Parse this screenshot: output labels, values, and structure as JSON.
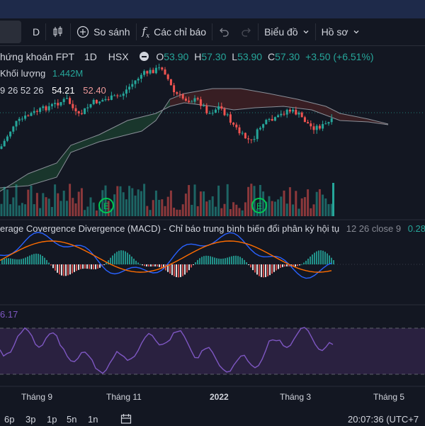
{
  "toolbar": {
    "interval_label": "D",
    "compare_label": "So sánh",
    "indicators_label": "Các chỉ báo",
    "chart_type_label": "Biểu đồ",
    "profile_label": "Hồ sơ"
  },
  "legend": {
    "symbol_name": "hứng khoán FPT",
    "interval": "1D",
    "exchange": "HSX",
    "open_label": "O",
    "open": "53.90",
    "high_label": "H",
    "high": "57.30",
    "low_label": "L",
    "low": "53.90",
    "close_label": "C",
    "close": "57.30",
    "change": "+3.50 (+6.51%)",
    "volume_label": "Khối lượng",
    "volume_value": "1.442M",
    "ichimoku_params": "9 26 52 26",
    "ichimoku_v1": "54.21",
    "ichimoku_v2": "52.40",
    "macd_title": "erage Covergence Divergence (MACD) - Chỉ báo trung bình biến đổi phân kỳ hội tụ",
    "macd_params": "12 26 close 9",
    "macd_value": "0.28",
    "rsi_value": "6.17"
  },
  "markers": {
    "earnings_letter": "E"
  },
  "time_axis": {
    "labels": [
      "Tháng 9",
      "Tháng 11",
      "2022",
      "Tháng 3",
      "Tháng 5"
    ]
  },
  "bottom_bar": {
    "ranges": [
      "6p",
      "3p",
      "1p",
      "5n",
      "1n"
    ],
    "clock": "20:07:36 (UTC+7"
  },
  "colors": {
    "up": "#26a69a",
    "down": "#ef5350",
    "macd_line": "#2962ff",
    "signal_line": "#ff6d00",
    "rsi_line": "#7e57c2",
    "cloud_green": "#1b3a2e",
    "cloud_red": "#3d1f24",
    "earnings": "#00c853"
  }
}
